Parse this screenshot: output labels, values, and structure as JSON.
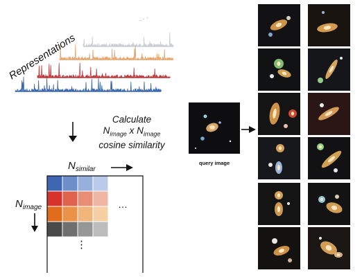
{
  "representations": {
    "label": "Representations",
    "dots": "· · ·",
    "spectra": [
      {
        "color": "#c9ced6",
        "seed": 11
      },
      {
        "color": "#e9a46a",
        "seed": 23
      },
      {
        "color": "#c0373b",
        "seed": 37
      },
      {
        "color": "#3a66ad",
        "seed": 51
      }
    ]
  },
  "calculate": {
    "line1": "Calculate",
    "line2_a": "N",
    "line2_a_sub": "image",
    "line2_mid": " x N",
    "line2_b_sub": "image",
    "line3": "cosine similarity"
  },
  "matrix": {
    "col_label": "N",
    "col_label_sub": "similar",
    "row_label": "N",
    "row_label_sub": "image",
    "hdots": "…",
    "vdots": "⋮",
    "colors": [
      [
        "#3f67b1",
        "#6c8fca",
        "#97b1dc",
        "#b9cbe8"
      ],
      [
        "#d7332d",
        "#e0614c",
        "#e98d77",
        "#f0b6a4"
      ],
      [
        "#e06c1c",
        "#ea9247",
        "#f1b57b",
        "#f5d0a5"
      ],
      [
        "#4a4a4a",
        "#6f6f6f",
        "#979797",
        "#bcbcbc"
      ]
    ]
  },
  "query": {
    "label": "query image"
  },
  "grid": {
    "tiles": [
      {
        "bg": "#121214",
        "gal": [
          [
            30,
            30,
            13,
            6,
            -25,
            "#e3a24e"
          ],
          [
            18,
            44,
            3,
            3,
            0,
            "#8fb6e8"
          ],
          [
            44,
            20,
            3,
            3,
            0,
            "#f0e6d0"
          ]
        ]
      },
      {
        "bg": "#1a1410",
        "gal": [
          [
            28,
            34,
            15,
            6,
            -10,
            "#e7aa57"
          ],
          [
            22,
            12,
            2,
            2,
            0,
            "#a9c9ef"
          ]
        ]
      },
      {
        "bg": "#111213",
        "gal": [
          [
            30,
            22,
            7,
            7,
            0,
            "#8fd07a"
          ],
          [
            38,
            36,
            10,
            5,
            20,
            "#e6b05a"
          ],
          [
            20,
            40,
            3,
            3,
            0,
            "#ffffff"
          ]
        ]
      },
      {
        "bg": "#15161a",
        "gal": [
          [
            34,
            30,
            16,
            4,
            -60,
            "#e9b466"
          ],
          [
            18,
            46,
            4,
            4,
            0,
            "#9fe09a"
          ],
          [
            48,
            14,
            2,
            2,
            0,
            "#ffffff"
          ]
        ]
      },
      {
        "bg": "#141414",
        "gal": [
          [
            24,
            30,
            7,
            16,
            10,
            "#e3a04c"
          ],
          [
            50,
            30,
            6,
            6,
            0,
            "#e05034"
          ],
          [
            40,
            48,
            3,
            3,
            0,
            "#ffd2c0"
          ]
        ]
      },
      {
        "bg": "#2a1614",
        "gal": [
          [
            30,
            30,
            17,
            5,
            -30,
            "#e7a85e"
          ],
          [
            20,
            18,
            3,
            3,
            0,
            "#ffffff"
          ]
        ]
      },
      {
        "bg": "#16181c",
        "gal": [
          [
            32,
            16,
            6,
            6,
            0,
            "#e8b060"
          ],
          [
            30,
            44,
            5,
            9,
            0,
            "#a8c6ee"
          ],
          [
            18,
            40,
            3,
            3,
            0,
            "#ffffff"
          ]
        ]
      },
      {
        "bg": "#121214",
        "gal": [
          [
            34,
            32,
            18,
            5,
            -40,
            "#e8b05a"
          ],
          [
            18,
            14,
            5,
            5,
            0,
            "#a6e894"
          ],
          [
            40,
            48,
            3,
            3,
            0,
            "#ffffff"
          ]
        ]
      },
      {
        "bg": "#141414",
        "gal": [
          [
            30,
            18,
            6,
            6,
            0,
            "#e7b05f"
          ],
          [
            30,
            38,
            6,
            10,
            0,
            "#e4a55a"
          ],
          [
            44,
            30,
            2,
            2,
            0,
            "#ffffff"
          ]
        ]
      },
      {
        "bg": "#131313",
        "gal": [
          [
            38,
            36,
            12,
            7,
            20,
            "#e7ad5c"
          ],
          [
            20,
            24,
            5,
            5,
            0,
            "#9ee0f2"
          ],
          [
            42,
            20,
            3,
            3,
            0,
            "#f0e0c0"
          ]
        ]
      },
      {
        "bg": "#141210",
        "gal": [
          [
            34,
            34,
            12,
            6,
            -20,
            "#e1a04d"
          ],
          [
            24,
            20,
            4,
            4,
            0,
            "#ffffff"
          ],
          [
            46,
            48,
            3,
            3,
            0,
            "#e6c79c"
          ]
        ]
      },
      {
        "bg": "#1a1614",
        "gal": [
          [
            30,
            30,
            13,
            8,
            30,
            "#e7ad5e"
          ],
          [
            44,
            40,
            6,
            4,
            0,
            "#e9c392"
          ],
          [
            18,
            16,
            2,
            2,
            0,
            "#ffffff"
          ]
        ]
      }
    ]
  },
  "colors": {
    "arrow": "#111111",
    "frame": "#111111"
  }
}
